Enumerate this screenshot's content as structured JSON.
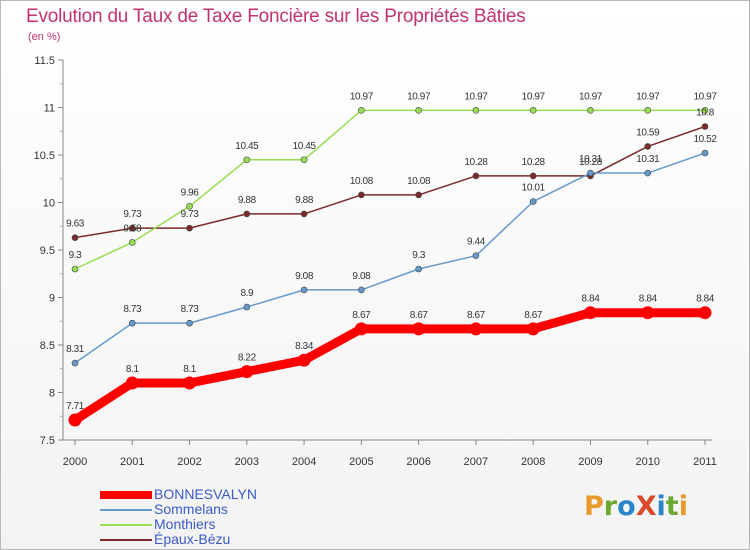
{
  "title": "Evolution du Taux de Taxe Foncière sur les Propriétés Bâties",
  "subtitle": "(en %)",
  "logo": "ProXiti",
  "colors": {
    "accent": "#c0336f",
    "logo_letters": [
      "#e89a2a",
      "#6aa832",
      "#2a86c8",
      "#d84a2a",
      "#2a86c8",
      "#6aa832",
      "#e89a2a"
    ]
  },
  "chart_data": {
    "type": "line",
    "x": [
      "2000",
      "2001",
      "2002",
      "2003",
      "2004",
      "2005",
      "2006",
      "2007",
      "2008",
      "2009",
      "2010",
      "2011"
    ],
    "ylim": [
      7.5,
      11.5
    ],
    "yticks": [
      "7.5",
      "8",
      "8.5",
      "9",
      "9.5",
      "10",
      "10.5",
      "11",
      "11.5"
    ],
    "grid": false,
    "legend": "bottom-left",
    "series": [
      {
        "name": "BONNESVALYN",
        "color": "#ff0000",
        "values": [
          7.71,
          8.1,
          8.1,
          8.22,
          8.34,
          8.67,
          8.67,
          8.67,
          8.67,
          8.84,
          8.84,
          8.84
        ],
        "labels": [
          "7.71",
          "8.1",
          "8.1",
          "8.22",
          "8.34",
          "8.67",
          "8.67",
          "8.67",
          "8.67",
          "8.84",
          "8.84",
          "8.84"
        ]
      },
      {
        "name": "Sommelans",
        "color": "#6699cc",
        "values": [
          8.31,
          8.73,
          8.73,
          8.9,
          9.08,
          9.08,
          9.3,
          9.44,
          10.01,
          10.31,
          10.31,
          10.52
        ],
        "labels": [
          "8.31",
          "8.73",
          "8.73",
          "8.9",
          "9.08",
          "9.08",
          "9.3",
          "9.44",
          "10.01",
          "10.31",
          "10.31",
          "10.52"
        ]
      },
      {
        "name": "Monthiers",
        "color": "#99dd55",
        "values": [
          9.3,
          9.58,
          9.96,
          10.45,
          10.45,
          10.97,
          10.97,
          10.97,
          10.97,
          10.97,
          10.97,
          10.97
        ],
        "labels": [
          "9.3",
          "9.58",
          "9.96",
          "10.45",
          "10.45",
          "10.97",
          "10.97",
          "10.97",
          "10.97",
          "10.97",
          "10.97",
          "10.97"
        ]
      },
      {
        "name": "Épaux-Bézu",
        "color": "#7a2a2a",
        "values": [
          9.63,
          9.73,
          9.73,
          9.88,
          9.88,
          10.08,
          10.08,
          10.28,
          10.28,
          10.28,
          10.59,
          10.8
        ],
        "labels": [
          "9.63",
          "9.73",
          "9.73",
          "9.88",
          "9.88",
          "10.08",
          "10.08",
          "10.28",
          "10.28",
          "10.28",
          "10.59",
          "10.8"
        ]
      }
    ]
  }
}
